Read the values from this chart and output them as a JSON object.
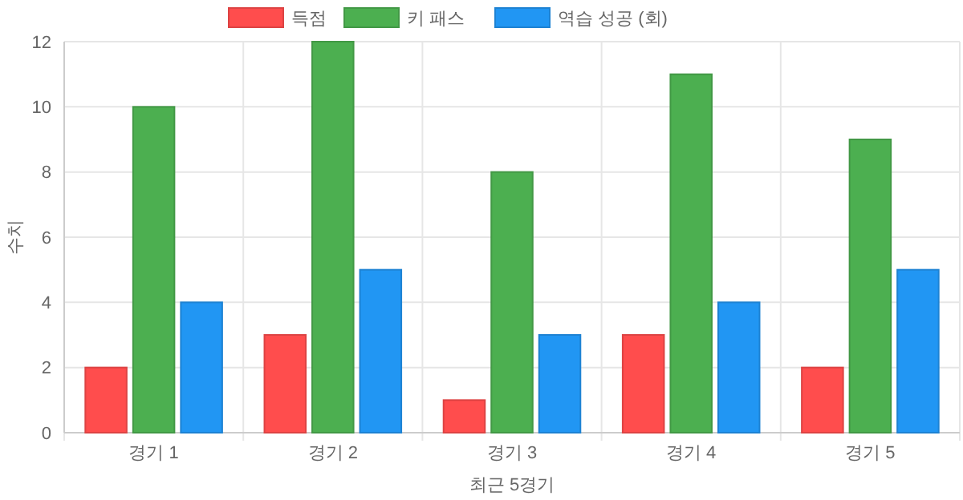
{
  "chart_data": {
    "type": "bar",
    "xlabel": "최근 5경기",
    "ylabel": "수치",
    "categories": [
      "경기 1",
      "경기 2",
      "경기 3",
      "경기 4",
      "경기 5"
    ],
    "series": [
      {
        "name": "득점",
        "color": "#ff4d4d",
        "values": [
          2,
          3,
          1,
          3,
          2
        ]
      },
      {
        "name": "키 패스",
        "color": "#4caf50",
        "values": [
          10,
          12,
          8,
          11,
          9
        ]
      },
      {
        "name": "역습 성공 (회)",
        "color": "#2196f3",
        "values": [
          4,
          5,
          3,
          4,
          5
        ]
      }
    ],
    "ylim": [
      0,
      12
    ],
    "yticks": [
      0,
      2,
      4,
      6,
      8,
      10,
      12
    ],
    "grid": true,
    "legend": "top"
  }
}
